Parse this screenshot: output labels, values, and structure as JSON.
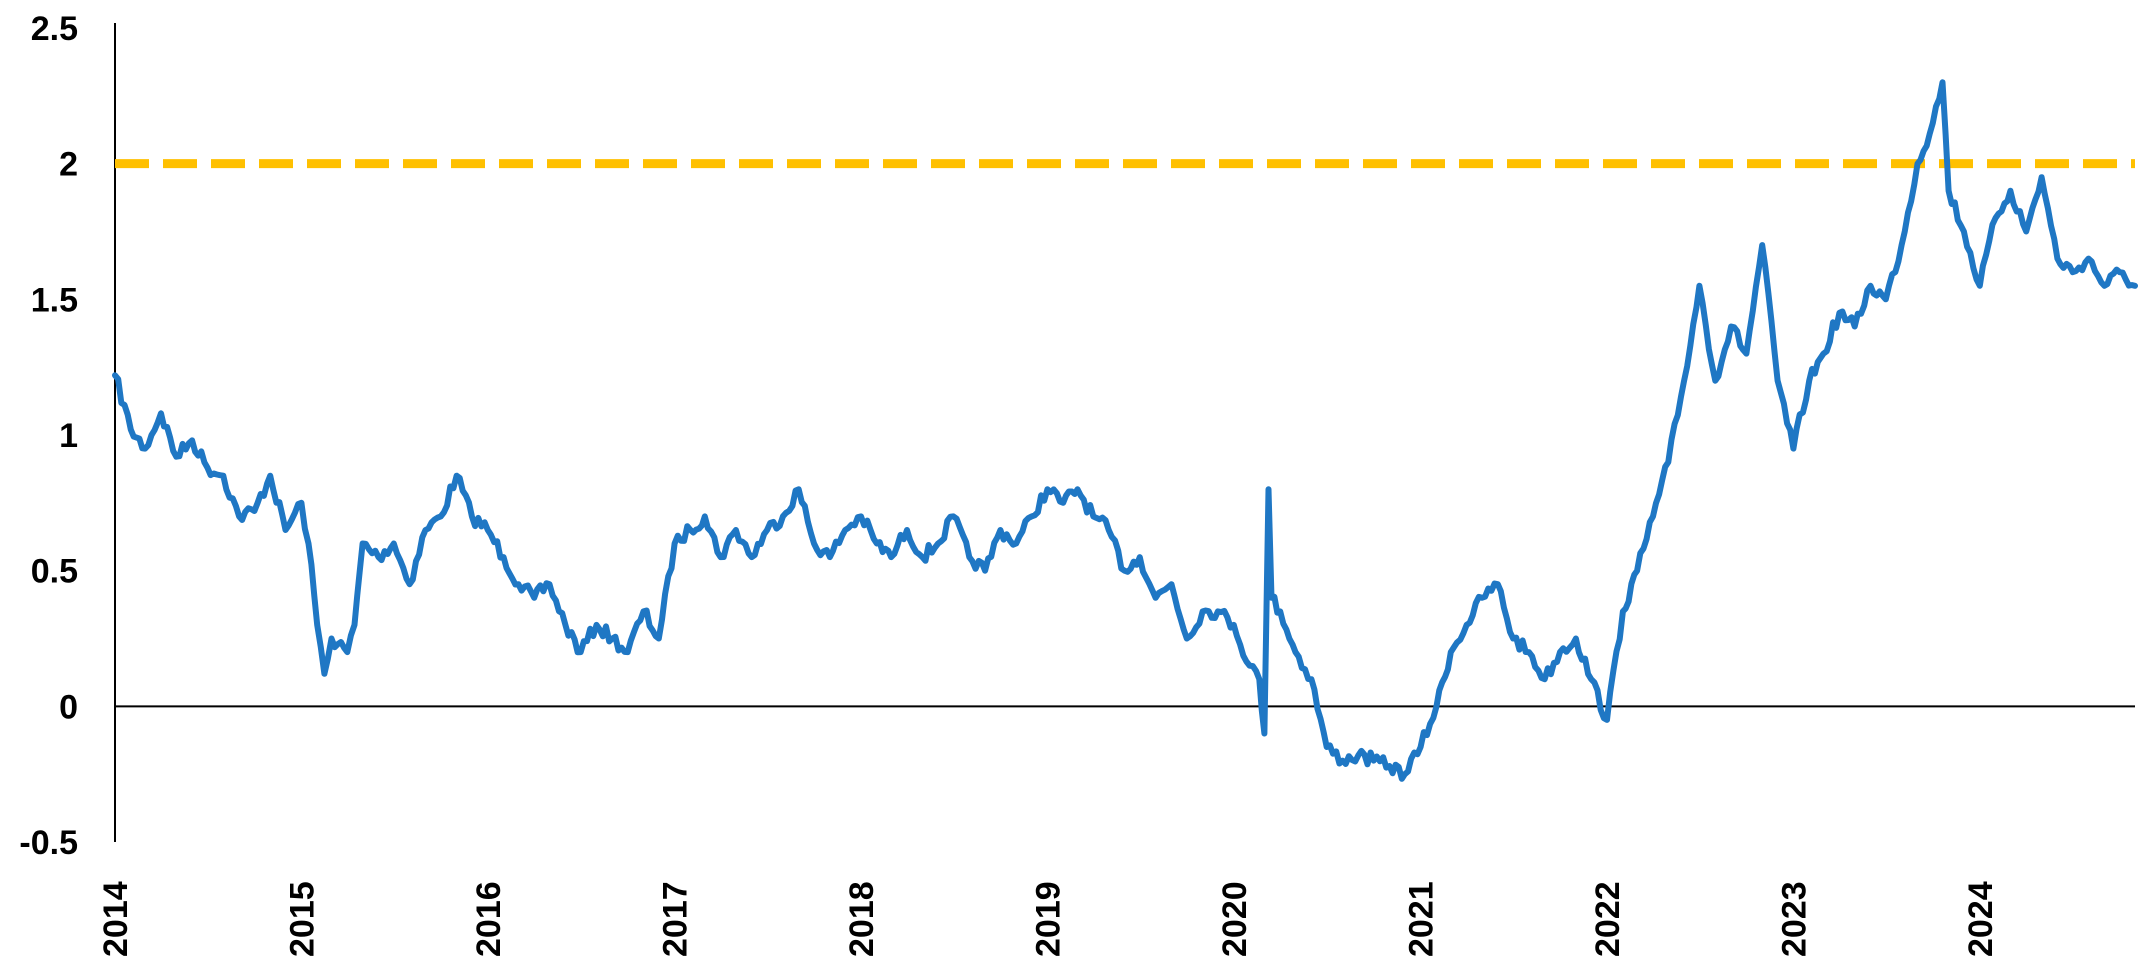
{
  "chart_data": {
    "type": "line",
    "title": "",
    "xlabel": "",
    "ylabel": "",
    "xlim": [
      "2014-01-01",
      "2024-10-31"
    ],
    "ylim": [
      -0.5,
      2.5
    ],
    "y_ticks": [
      "-0.5",
      "0",
      "0.5",
      "1",
      "1.5",
      "2",
      "2.5"
    ],
    "x_ticks": [
      "2014",
      "2015",
      "2016",
      "2017",
      "2018",
      "2019",
      "2020",
      "2021",
      "2022",
      "2023",
      "2024"
    ],
    "grid": false,
    "legend": "none",
    "zero_line": 0,
    "reference_line": {
      "y": 2,
      "color": "#FFC000",
      "style": "dashed"
    },
    "series": [
      {
        "color": "#1F77C4",
        "x": [
          "2014-01-01",
          "2014-02-01",
          "2014-03-01",
          "2014-04-01",
          "2014-05-01",
          "2014-06-01",
          "2014-07-01",
          "2014-08-01",
          "2014-09-01",
          "2014-10-01",
          "2014-11-01",
          "2014-12-01",
          "2015-01-01",
          "2015-01-15",
          "2015-02-01",
          "2015-02-15",
          "2015-03-01",
          "2015-04-01",
          "2015-04-15",
          "2015-05-01",
          "2015-06-01",
          "2015-07-01",
          "2015-08-01",
          "2015-09-01",
          "2015-10-01",
          "2015-11-01",
          "2015-12-01",
          "2016-01-01",
          "2016-02-01",
          "2016-03-01",
          "2016-04-01",
          "2016-05-01",
          "2016-06-01",
          "2016-07-01",
          "2016-08-01",
          "2016-09-01",
          "2016-10-01",
          "2016-11-01",
          "2016-12-01",
          "2017-01-01",
          "2017-02-01",
          "2017-03-01",
          "2017-04-01",
          "2017-05-01",
          "2017-06-01",
          "2017-07-01",
          "2017-08-01",
          "2017-09-01",
          "2017-10-01",
          "2017-11-01",
          "2017-12-01",
          "2018-01-01",
          "2018-02-01",
          "2018-03-01",
          "2018-04-01",
          "2018-05-01",
          "2018-06-01",
          "2018-07-01",
          "2018-08-01",
          "2018-09-01",
          "2018-10-01",
          "2018-11-01",
          "2018-12-01",
          "2019-01-01",
          "2019-02-01",
          "2019-03-01",
          "2019-04-01",
          "2019-05-01",
          "2019-06-01",
          "2019-07-01",
          "2019-08-01",
          "2019-09-01",
          "2019-10-01",
          "2019-11-01",
          "2019-12-01",
          "2020-01-01",
          "2020-02-01",
          "2020-02-20",
          "2020-03-01",
          "2020-03-09",
          "2020-03-15",
          "2020-04-01",
          "2020-05-01",
          "2020-06-01",
          "2020-07-01",
          "2020-08-01",
          "2020-09-01",
          "2020-10-01",
          "2020-11-01",
          "2020-12-01",
          "2021-01-01",
          "2021-02-01",
          "2021-03-01",
          "2021-04-01",
          "2021-05-01",
          "2021-06-01",
          "2021-07-01",
          "2021-08-01",
          "2021-09-01",
          "2021-10-01",
          "2021-11-01",
          "2021-12-01",
          "2022-01-01",
          "2022-02-01",
          "2022-03-01",
          "2022-04-01",
          "2022-05-01",
          "2022-06-01",
          "2022-07-01",
          "2022-08-01",
          "2022-09-01",
          "2022-10-01",
          "2022-11-01",
          "2022-12-01",
          "2023-01-01",
          "2023-02-01",
          "2023-03-01",
          "2023-04-01",
          "2023-05-01",
          "2023-06-01",
          "2023-07-01",
          "2023-08-01",
          "2023-09-01",
          "2023-10-01",
          "2023-10-20",
          "2023-11-01",
          "2023-12-01",
          "2024-01-01",
          "2024-02-01",
          "2024-03-01",
          "2024-04-01",
          "2024-05-01",
          "2024-06-01",
          "2024-07-01",
          "2024-08-01",
          "2024-09-01",
          "2024-10-01",
          "2024-10-31"
        ],
        "y": [
          1.22,
          1.02,
          0.95,
          1.08,
          0.92,
          0.98,
          0.88,
          0.85,
          0.7,
          0.72,
          0.85,
          0.65,
          0.75,
          0.6,
          0.3,
          0.12,
          0.25,
          0.2,
          0.3,
          0.6,
          0.55,
          0.6,
          0.45,
          0.65,
          0.7,
          0.85,
          0.7,
          0.65,
          0.55,
          0.45,
          0.4,
          0.45,
          0.3,
          0.2,
          0.3,
          0.25,
          0.2,
          0.35,
          0.25,
          0.6,
          0.65,
          0.7,
          0.55,
          0.65,
          0.55,
          0.65,
          0.7,
          0.8,
          0.6,
          0.55,
          0.65,
          0.7,
          0.6,
          0.55,
          0.65,
          0.55,
          0.6,
          0.7,
          0.55,
          0.5,
          0.65,
          0.6,
          0.7,
          0.8,
          0.75,
          0.8,
          0.7,
          0.65,
          0.5,
          0.55,
          0.4,
          0.45,
          0.25,
          0.35,
          0.35,
          0.3,
          0.15,
          0.1,
          -0.1,
          0.8,
          0.4,
          0.35,
          0.2,
          0.1,
          -0.15,
          -0.2,
          -0.18,
          -0.2,
          -0.22,
          -0.25,
          -0.15,
          0.0,
          0.2,
          0.3,
          0.4,
          0.45,
          0.25,
          0.2,
          0.1,
          0.2,
          0.25,
          0.1,
          -0.05,
          0.35,
          0.5,
          0.7,
          0.9,
          1.2,
          1.55,
          1.2,
          1.4,
          1.3,
          1.7,
          1.2,
          0.95,
          1.2,
          1.3,
          1.45,
          1.4,
          1.55,
          1.5,
          1.7,
          2.0,
          2.15,
          2.3,
          1.9,
          1.75,
          1.55,
          1.8,
          1.9,
          1.75,
          1.95,
          1.65,
          1.6,
          1.65,
          1.55,
          1.6,
          1.55
        ]
      }
    ]
  }
}
